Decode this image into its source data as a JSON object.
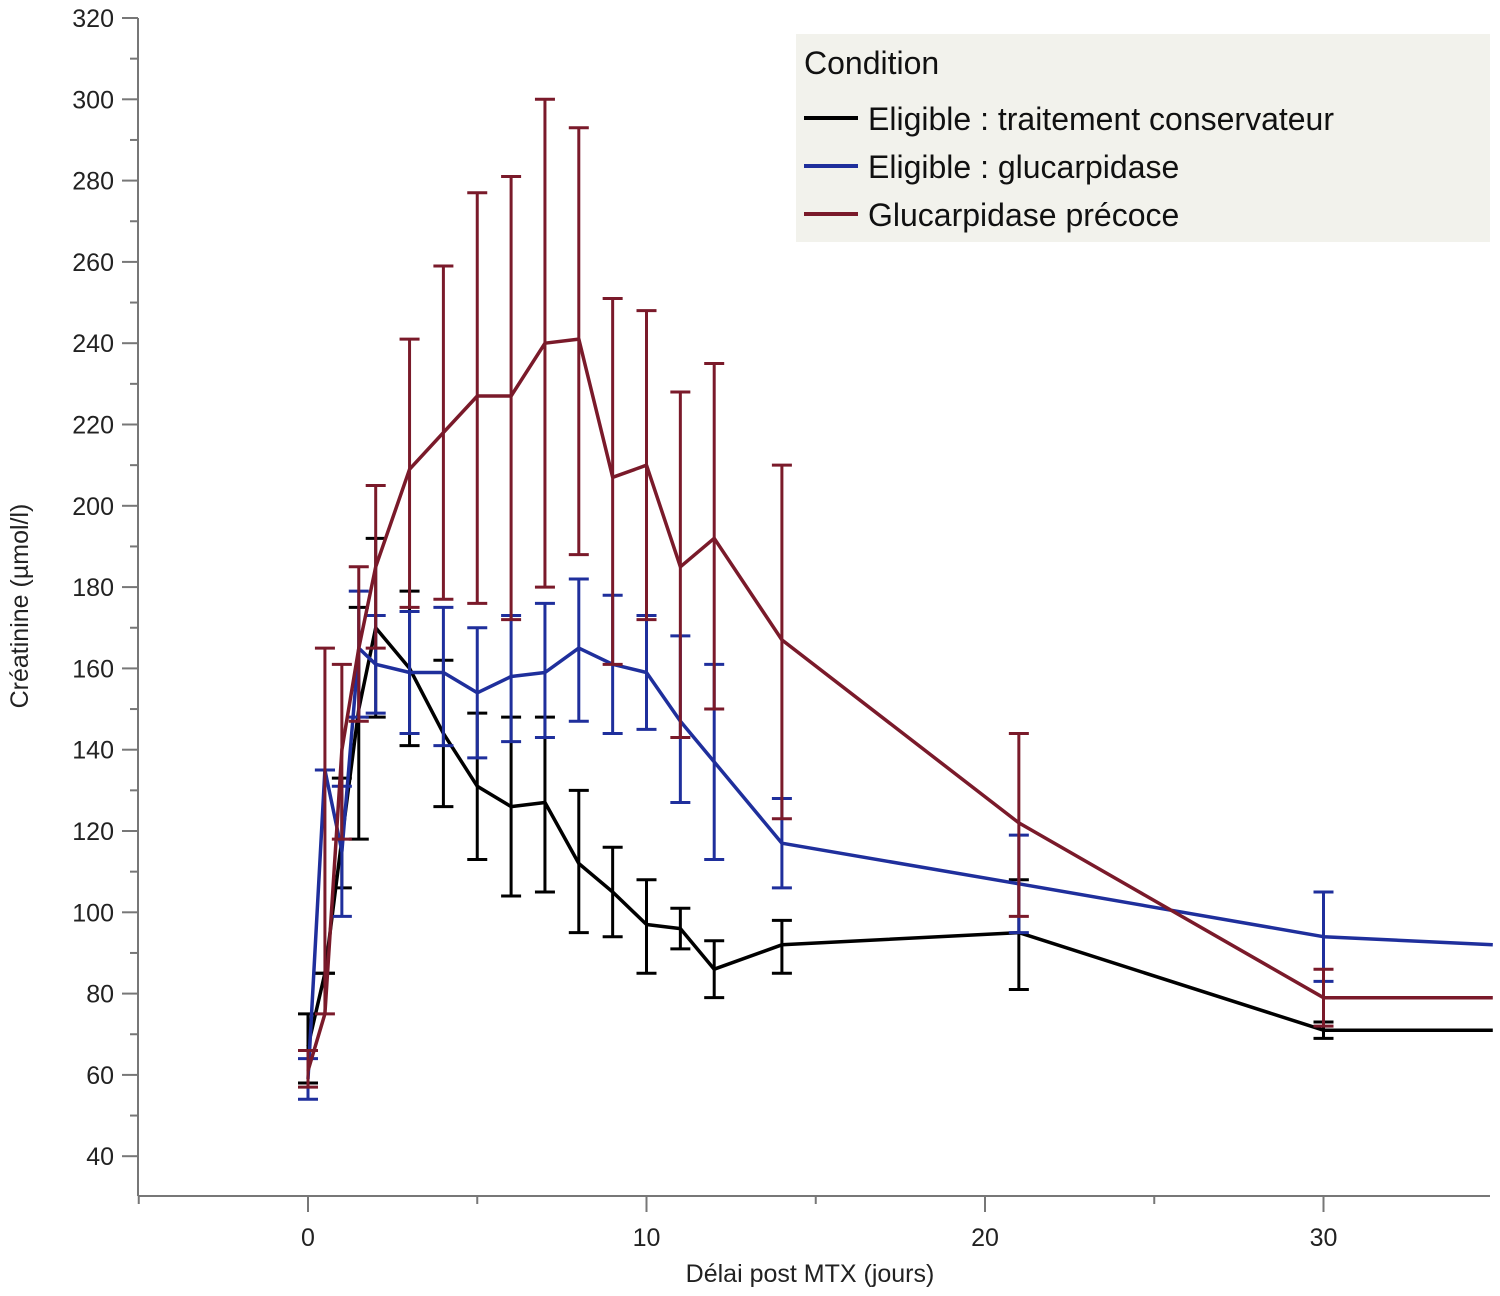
{
  "chart_data": {
    "type": "line",
    "xlabel": "Délai post MTX (jours)",
    "ylabel": "Créatinine (µmol/l)",
    "xlim": [
      -5,
      35
    ],
    "ylim": [
      35,
      320
    ],
    "xticks": [
      0,
      10,
      20,
      30
    ],
    "yticks": [
      40,
      60,
      80,
      100,
      120,
      140,
      160,
      180,
      200,
      220,
      240,
      260,
      280,
      300,
      320
    ],
    "error_bars": true,
    "grid": false,
    "legend": {
      "title": "Condition",
      "position": "top-right"
    },
    "series": [
      {
        "name": "Eligible : traitement conservateur",
        "color": "#000000",
        "points": [
          {
            "x": 0,
            "y": 67,
            "lo": 58,
            "hi": 75
          },
          {
            "x": 0.5,
            "y": 85,
            "lo": 85,
            "hi": 85
          },
          {
            "x": 1,
            "y": 118,
            "lo": 106,
            "hi": 133
          },
          {
            "x": 1.5,
            "y": 150,
            "lo": 118,
            "hi": 175
          },
          {
            "x": 2,
            "y": 170,
            "lo": 148,
            "hi": 192
          },
          {
            "x": 3,
            "y": 160,
            "lo": 141,
            "hi": 179
          },
          {
            "x": 4,
            "y": 144,
            "lo": 126,
            "hi": 162
          },
          {
            "x": 5,
            "y": 131,
            "lo": 113,
            "hi": 149
          },
          {
            "x": 6,
            "y": 126,
            "lo": 104,
            "hi": 148
          },
          {
            "x": 7,
            "y": 127,
            "lo": 105,
            "hi": 148
          },
          {
            "x": 8,
            "y": 112,
            "lo": 95,
            "hi": 130
          },
          {
            "x": 9,
            "y": 105,
            "lo": 94,
            "hi": 116
          },
          {
            "x": 10,
            "y": 97,
            "lo": 85,
            "hi": 108
          },
          {
            "x": 11,
            "y": 96,
            "lo": 91,
            "hi": 101
          },
          {
            "x": 12,
            "y": 86,
            "lo": 79,
            "hi": 93
          },
          {
            "x": 14,
            "y": 92,
            "lo": 85,
            "hi": 98
          },
          {
            "x": 21,
            "y": 95,
            "lo": 81,
            "hi": 108
          },
          {
            "x": 30,
            "y": 71,
            "lo": 69,
            "hi": 73
          },
          {
            "x": 35,
            "y": 71
          }
        ]
      },
      {
        "name": "Eligible : glucarpidase",
        "color": "#1f2f9c",
        "points": [
          {
            "x": 0,
            "y": 59,
            "lo": 54,
            "hi": 64
          },
          {
            "x": 0.5,
            "y": 135,
            "lo": 135,
            "hi": 135
          },
          {
            "x": 1,
            "y": 115,
            "lo": 99,
            "hi": 131
          },
          {
            "x": 1.5,
            "y": 165,
            "lo": 148,
            "hi": 179
          },
          {
            "x": 2,
            "y": 161,
            "lo": 149,
            "hi": 173
          },
          {
            "x": 3,
            "y": 159,
            "lo": 144,
            "hi": 174
          },
          {
            "x": 4,
            "y": 159,
            "lo": 141,
            "hi": 175
          },
          {
            "x": 5,
            "y": 154,
            "lo": 138,
            "hi": 170
          },
          {
            "x": 6,
            "y": 158,
            "lo": 142,
            "hi": 173
          },
          {
            "x": 7,
            "y": 159,
            "lo": 143,
            "hi": 176
          },
          {
            "x": 8,
            "y": 165,
            "lo": 147,
            "hi": 182
          },
          {
            "x": 9,
            "y": 161,
            "lo": 144,
            "hi": 178
          },
          {
            "x": 10,
            "y": 159,
            "lo": 145,
            "hi": 173
          },
          {
            "x": 11,
            "y": 147,
            "lo": 127,
            "hi": 168
          },
          {
            "x": 12,
            "y": 137,
            "lo": 113,
            "hi": 161
          },
          {
            "x": 14,
            "y": 117,
            "lo": 106,
            "hi": 128
          },
          {
            "x": 21,
            "y": 107,
            "lo": 95,
            "hi": 119
          },
          {
            "x": 30,
            "y": 94,
            "lo": 83,
            "hi": 105
          },
          {
            "x": 35,
            "y": 92
          }
        ]
      },
      {
        "name": "Glucarpidase précoce",
        "color": "#7a1a2a",
        "points": [
          {
            "x": 0,
            "y": 61,
            "lo": 57,
            "hi": 66
          },
          {
            "x": 0.5,
            "y": 75,
            "lo": 75,
            "hi": 165
          },
          {
            "x": 1,
            "y": 140,
            "lo": 118,
            "hi": 161
          },
          {
            "x": 1.5,
            "y": 165,
            "lo": 147,
            "hi": 185
          },
          {
            "x": 2,
            "y": 185,
            "lo": 165,
            "hi": 205
          },
          {
            "x": 3,
            "y": 209,
            "lo": 175,
            "hi": 241
          },
          {
            "x": 4,
            "y": 218,
            "lo": 177,
            "hi": 259
          },
          {
            "x": 5,
            "y": 227,
            "lo": 176,
            "hi": 277
          },
          {
            "x": 6,
            "y": 227,
            "lo": 172,
            "hi": 281
          },
          {
            "x": 7,
            "y": 240,
            "lo": 180,
            "hi": 300
          },
          {
            "x": 8,
            "y": 241,
            "lo": 188,
            "hi": 293
          },
          {
            "x": 9,
            "y": 207,
            "lo": 161,
            "hi": 251
          },
          {
            "x": 10,
            "y": 210,
            "lo": 172,
            "hi": 248
          },
          {
            "x": 11,
            "y": 185,
            "lo": 143,
            "hi": 228
          },
          {
            "x": 12,
            "y": 192,
            "lo": 150,
            "hi": 235
          },
          {
            "x": 14,
            "y": 167,
            "lo": 123,
            "hi": 210
          },
          {
            "x": 21,
            "y": 122,
            "lo": 99,
            "hi": 144
          },
          {
            "x": 30,
            "y": 79,
            "lo": 72,
            "hi": 86
          },
          {
            "x": 35,
            "y": 79
          }
        ]
      }
    ]
  }
}
